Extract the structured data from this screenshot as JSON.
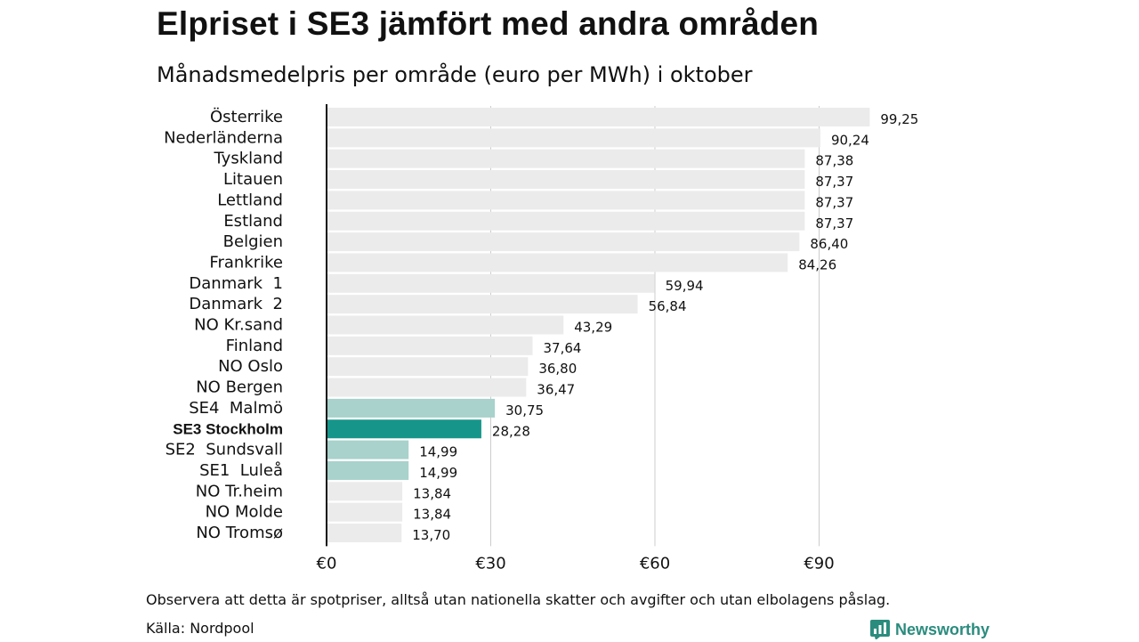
{
  "title": "Elpriset i SE3 jämfört med andra områden",
  "subtitle": "Månadsmedelpris per område (euro per MWh) i oktober",
  "note": "Observera att detta är spotpriser, alltså utan nationella skatter och avgifter och utan elbolagens påslag.",
  "source": "Källa: Nordpool",
  "brand": {
    "name": "Newsworthy",
    "icon": "newsworthy-logo-icon",
    "color": "#2b8c7e"
  },
  "colors": {
    "bar_default": "#ebebeb",
    "bar_se_light": "#a8d2cb",
    "bar_highlight": "#16968a",
    "axis": "#111111",
    "grid": "#cccccc"
  },
  "chart_data": {
    "type": "bar",
    "orientation": "horizontal",
    "title": "Elpriset i SE3 jämfört med andra områden",
    "subtitle": "Månadsmedelpris per område (euro per MWh) i oktober",
    "categories": [
      "Österrike",
      "Nederländerna",
      "Tyskland",
      "Litauen",
      "Lettland",
      "Estland",
      "Belgien",
      "Frankrike",
      "Danmark  1",
      "Danmark  2",
      "NO Kr.sand",
      "Finland",
      "NO Oslo",
      "NO Bergen",
      "SE4  Malmö",
      "SE3 Stockholm",
      "SE2  Sundsvall",
      "SE1  Luleå",
      "NO Tr.heim",
      "NO Molde",
      "NO Tromsø"
    ],
    "values": [
      99.25,
      90.24,
      87.38,
      87.37,
      87.37,
      87.37,
      86.4,
      84.26,
      59.94,
      56.84,
      43.29,
      37.64,
      36.8,
      36.47,
      30.75,
      28.28,
      14.99,
      14.99,
      13.84,
      13.84,
      13.7
    ],
    "value_labels": [
      "99,25",
      "90,24",
      "87,38",
      "87,37",
      "87,37",
      "87,37",
      "86,40",
      "84,26",
      "59,94",
      "56,84",
      "43,29",
      "37,64",
      "36,80",
      "36,47",
      "30,75",
      "28,28",
      "14,99",
      "14,99",
      "13,84",
      "13,84",
      "13,70"
    ],
    "bar_color_keys": [
      "bar_default",
      "bar_default",
      "bar_default",
      "bar_default",
      "bar_default",
      "bar_default",
      "bar_default",
      "bar_default",
      "bar_default",
      "bar_default",
      "bar_default",
      "bar_default",
      "bar_default",
      "bar_default",
      "bar_se_light",
      "bar_highlight",
      "bar_se_light",
      "bar_se_light",
      "bar_default",
      "bar_default",
      "bar_default"
    ],
    "highlight_category": "SE3 Stockholm",
    "x_ticks": [
      0,
      30,
      60,
      90
    ],
    "x_tick_labels": [
      "€0",
      "€30",
      "€60",
      "€90"
    ],
    "xlim": [
      0,
      100
    ],
    "grid": true,
    "legend": "none"
  }
}
